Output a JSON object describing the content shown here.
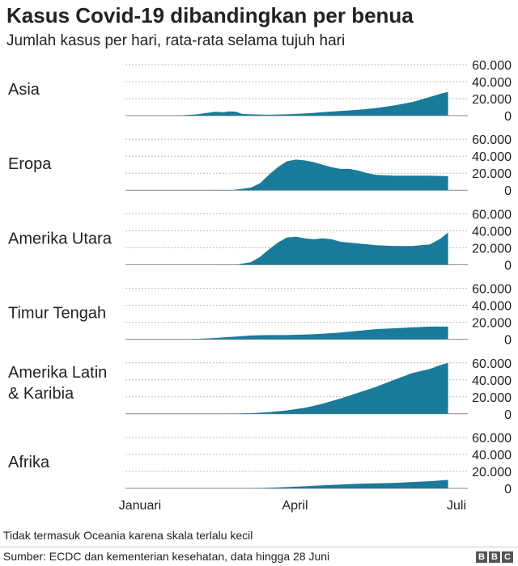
{
  "title": "Kasus Covid-19 dibandingkan per benua",
  "subtitle": "Jumlah kasus per hari, rata-rata selama tujuh hari",
  "note": "Tidak termasuk Oceania karena skala terlalu kecil",
  "source": "Sumber: ECDC dan kementerian kesehatan, data hingga 28 Juni",
  "logo": [
    "B",
    "B",
    "C"
  ],
  "colors": {
    "area": "#1a7a9a",
    "grid": "#bbbbbb",
    "text": "#222222"
  },
  "chart_data": {
    "type": "area",
    "y_ticks": [
      "60.000",
      "40.000",
      "20.000",
      "0"
    ],
    "y_tick_values": [
      60000,
      40000,
      20000,
      0
    ],
    "ylim": [
      0,
      60000
    ],
    "x_ticks": [
      "Januari",
      "April",
      "Juli"
    ],
    "x_tick_days": [
      0,
      91,
      182
    ],
    "series": [
      {
        "name": "Asia",
        "label_lines": [
          "Asia"
        ],
        "points": [
          [
            0,
            0
          ],
          [
            20,
            0
          ],
          [
            30,
            200
          ],
          [
            40,
            1500
          ],
          [
            45,
            3000
          ],
          [
            50,
            4500
          ],
          [
            55,
            4000
          ],
          [
            58,
            5000
          ],
          [
            62,
            4500
          ],
          [
            65,
            2000
          ],
          [
            70,
            1500
          ],
          [
            80,
            1000
          ],
          [
            90,
            1500
          ],
          [
            100,
            2500
          ],
          [
            110,
            4000
          ],
          [
            120,
            5500
          ],
          [
            130,
            7000
          ],
          [
            140,
            9000
          ],
          [
            150,
            12000
          ],
          [
            160,
            16000
          ],
          [
            170,
            22000
          ],
          [
            176,
            26000
          ],
          [
            180,
            28000
          ]
        ]
      },
      {
        "name": "Eropa",
        "label_lines": [
          "Eropa"
        ],
        "points": [
          [
            0,
            0
          ],
          [
            40,
            0
          ],
          [
            60,
            200
          ],
          [
            70,
            3000
          ],
          [
            75,
            8000
          ],
          [
            80,
            18000
          ],
          [
            85,
            27000
          ],
          [
            90,
            34000
          ],
          [
            95,
            36000
          ],
          [
            100,
            35000
          ],
          [
            105,
            33000
          ],
          [
            110,
            30000
          ],
          [
            115,
            27000
          ],
          [
            120,
            25000
          ],
          [
            125,
            25000
          ],
          [
            130,
            23000
          ],
          [
            135,
            20000
          ],
          [
            140,
            18000
          ],
          [
            150,
            17000
          ],
          [
            160,
            17000
          ],
          [
            170,
            17000
          ],
          [
            180,
            16500
          ]
        ]
      },
      {
        "name": "Amerika Utara",
        "label_lines": [
          "Amerika Utara"
        ],
        "points": [
          [
            0,
            0
          ],
          [
            50,
            0
          ],
          [
            62,
            200
          ],
          [
            70,
            3000
          ],
          [
            75,
            9000
          ],
          [
            80,
            18000
          ],
          [
            85,
            26000
          ],
          [
            90,
            32000
          ],
          [
            95,
            33000
          ],
          [
            100,
            31000
          ],
          [
            105,
            30000
          ],
          [
            110,
            31000
          ],
          [
            115,
            30000
          ],
          [
            120,
            27000
          ],
          [
            130,
            25000
          ],
          [
            140,
            23000
          ],
          [
            150,
            22000
          ],
          [
            160,
            22000
          ],
          [
            170,
            24000
          ],
          [
            176,
            31000
          ],
          [
            180,
            38000
          ]
        ]
      },
      {
        "name": "Timur Tengah",
        "label_lines": [
          "Timur Tengah"
        ],
        "points": [
          [
            0,
            0
          ],
          [
            30,
            0
          ],
          [
            40,
            500
          ],
          [
            50,
            1500
          ],
          [
            60,
            3000
          ],
          [
            70,
            4500
          ],
          [
            80,
            5000
          ],
          [
            90,
            5000
          ],
          [
            100,
            5500
          ],
          [
            110,
            6500
          ],
          [
            120,
            8000
          ],
          [
            130,
            10000
          ],
          [
            140,
            12000
          ],
          [
            150,
            13000
          ],
          [
            160,
            14000
          ],
          [
            170,
            15000
          ],
          [
            180,
            15000
          ]
        ]
      },
      {
        "name": "Amerika Latin & Karibia",
        "label_lines": [
          "Amerika Latin",
          "& Karibia"
        ],
        "points": [
          [
            0,
            0
          ],
          [
            50,
            0
          ],
          [
            60,
            200
          ],
          [
            70,
            800
          ],
          [
            80,
            2000
          ],
          [
            90,
            4000
          ],
          [
            100,
            7000
          ],
          [
            110,
            12000
          ],
          [
            120,
            18000
          ],
          [
            130,
            25000
          ],
          [
            140,
            32000
          ],
          [
            150,
            40000
          ],
          [
            160,
            48000
          ],
          [
            170,
            53000
          ],
          [
            175,
            57000
          ],
          [
            180,
            60000
          ]
        ]
      },
      {
        "name": "Afrika",
        "label_lines": [
          "Afrika"
        ],
        "points": [
          [
            0,
            0
          ],
          [
            60,
            0
          ],
          [
            70,
            300
          ],
          [
            80,
            800
          ],
          [
            90,
            1500
          ],
          [
            100,
            2500
          ],
          [
            110,
            3500
          ],
          [
            120,
            4500
          ],
          [
            130,
            5500
          ],
          [
            140,
            6000
          ],
          [
            150,
            6500
          ],
          [
            160,
            7500
          ],
          [
            170,
            8500
          ],
          [
            180,
            10000
          ]
        ]
      }
    ]
  }
}
